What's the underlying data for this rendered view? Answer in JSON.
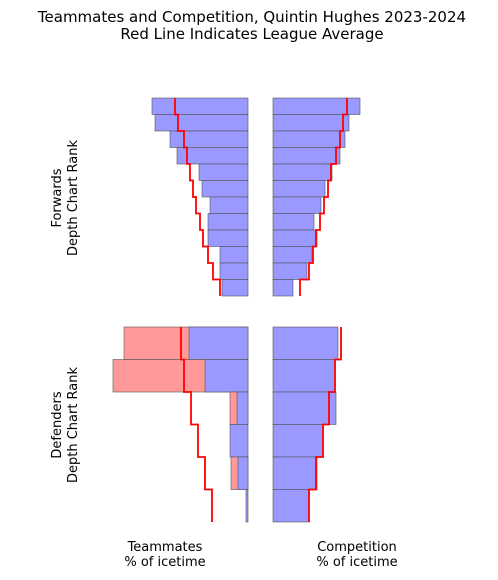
{
  "chart_data": {
    "type": "bar",
    "title": "Teammates and Competition, Quintin Hughes 2023-2024",
    "subtitle": "Red Line Indicates League Average",
    "x_labels": {
      "teammates": "Teammates\n% of icetime",
      "competition": "Competition\n% of icetime"
    },
    "colors": {
      "above": "#9999ff",
      "below": "#ff9999",
      "average": "#ff0000",
      "edge": "#555555"
    },
    "panels": [
      {
        "group": "forwards",
        "ylabel": "Forwards\nDepth Chart Rank",
        "ranks": [
          "1",
          "2",
          "3",
          "4",
          "5",
          "6",
          "7",
          "8",
          "9",
          "10",
          "11",
          "12"
        ],
        "teammates": {
          "blue": [
            0.96,
            0.93,
            0.78,
            0.71,
            0.49,
            0.46,
            0.38,
            0.4,
            0.4,
            0.28,
            0.28,
            0.26
          ],
          "red": [
            0,
            0,
            0,
            0,
            0,
            0,
            0,
            0,
            0,
            0,
            0,
            0
          ],
          "avg": [
            0.73,
            0.7,
            0.64,
            0.61,
            0.58,
            0.55,
            0.52,
            0.48,
            0.45,
            0.4,
            0.35,
            0.28
          ]
        },
        "competition": {
          "blue": [
            0.87,
            0.76,
            0.72,
            0.67,
            0.59,
            0.52,
            0.48,
            0.41,
            0.44,
            0.39,
            0.34,
            0.2
          ],
          "red": [
            0,
            0,
            0,
            0,
            0,
            0,
            0,
            0,
            0,
            0,
            0,
            0
          ],
          "avg": [
            0.74,
            0.7,
            0.67,
            0.63,
            0.58,
            0.55,
            0.51,
            0.47,
            0.43,
            0.4,
            0.36,
            0.27
          ]
        }
      },
      {
        "group": "defenders",
        "ylabel": "Defenders\nDepth Chart Rank",
        "ranks": [
          "1",
          "2",
          "3",
          "4",
          "5",
          "6"
        ],
        "teammates": {
          "blue": [
            0.59,
            0.43,
            0.11,
            0.18,
            0.1,
            0.02
          ],
          "red": [
            1.24,
            1.35,
            0.18,
            0,
            0.17,
            0
          ],
          "avg": [
            0.67,
            0.64,
            0.57,
            0.5,
            0.43,
            0.36
          ]
        },
        "competition": {
          "blue": [
            0.65,
            0.62,
            0.63,
            0.5,
            0.44,
            0.36
          ],
          "red": [
            0,
            0,
            0,
            0,
            0,
            0
          ],
          "avg": [
            0.68,
            0.62,
            0.56,
            0.5,
            0.43,
            0.36
          ]
        }
      }
    ]
  }
}
